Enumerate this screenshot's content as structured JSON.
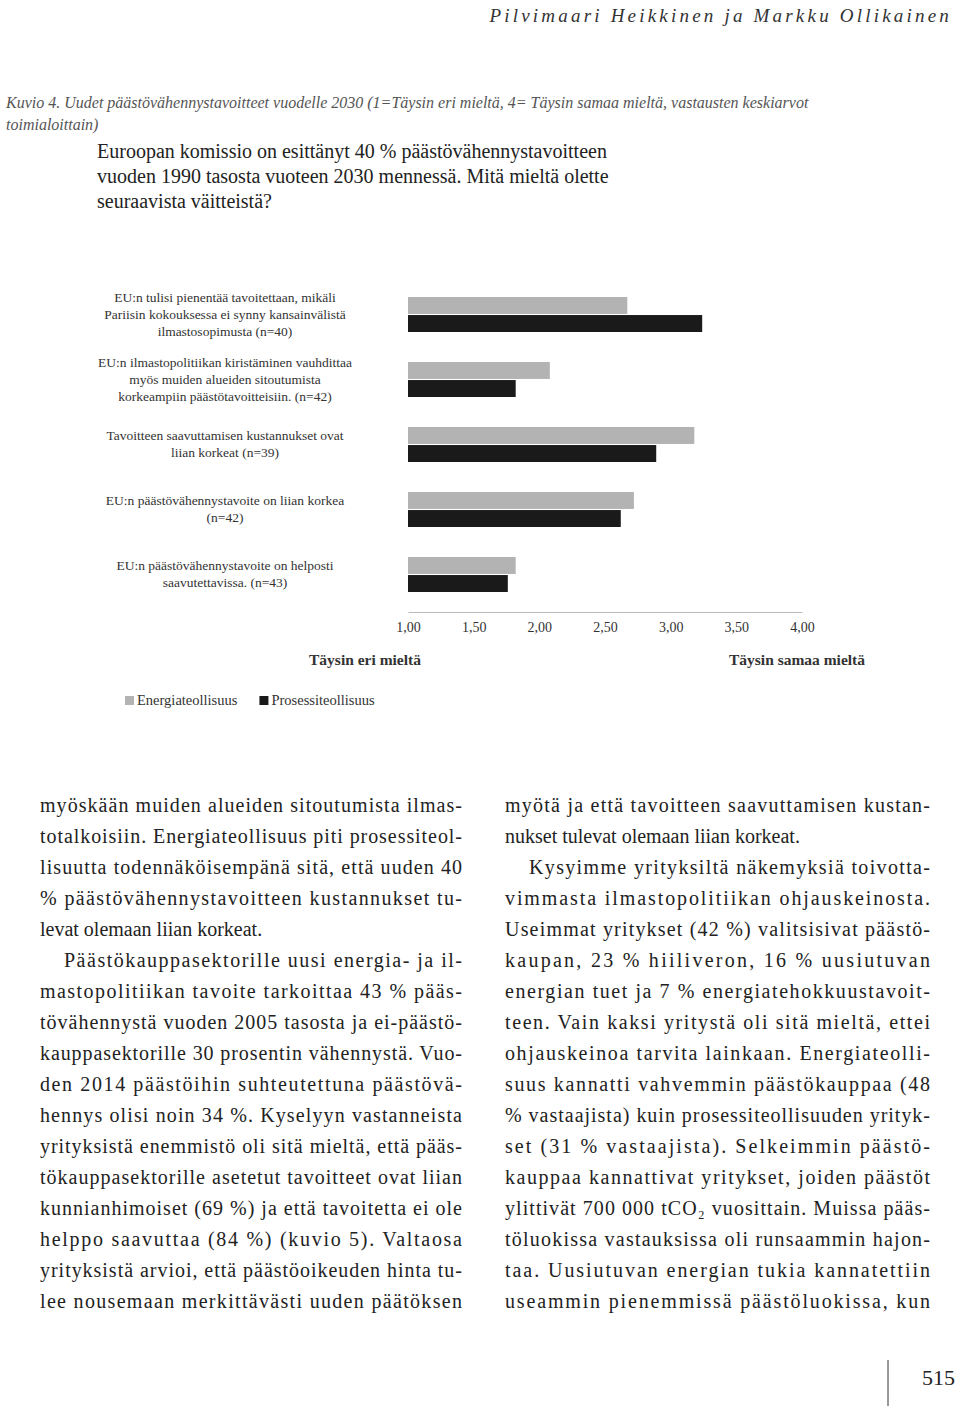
{
  "header": "Pilvimaari Heikkinen ja Markku Ollikainen",
  "caption": "Kuvio 4. Uudet päästövähennystavoitteet vuodelle 2030 (1=Täysin eri mieltä, 4= Täysin samaa mieltä, vastausten keskiarvot\ntoimialoittain)",
  "chart_data": {
    "type": "bar",
    "orientation": "horizontal",
    "title": "Euroopan komissio on esittänyt 40 % päästövähennystavoitteen\nvuoden 1990 tasosta vuoteen 2030 mennessä. Mitä mieltä olette\nseuraavista väitteistä?",
    "categories": [
      "EU:n tulisi pienentää tavoitettaan, mikäli\nPariisin kokouksessa ei synny kansainvälistä\nilmastosopimusta (n=40)",
      "EU:n ilmastopolitiikan kiristäminen vauhdittaa\nmyös muiden alueiden sitoutumista\nkorkeampiin päästötavoitteisiin. (n=42)",
      "Tavoitteen saavuttamisen kustannukset ovat\nliian korkeat (n=39)",
      "EU:n päästövähennystavoite on liian korkea\n(n=42)",
      "EU:n päästövähennystavoite on helposti\nsaavutettavissa. (n=43)"
    ],
    "series": [
      {
        "name": "Energiateollisuus",
        "color": "#b3b3b3",
        "values": [
          2.67,
          2.08,
          3.18,
          2.72,
          1.82
        ]
      },
      {
        "name": "Prosessiteollisuus",
        "color": "#1a1a1a",
        "values": [
          3.24,
          1.82,
          2.89,
          2.62,
          1.76
        ]
      }
    ],
    "xlim": [
      1,
      4
    ],
    "xticks": [
      {
        "value": 1,
        "label": "1,00"
      },
      {
        "value": 1.5,
        "label": "1,50"
      },
      {
        "value": 2,
        "label": "2,00"
      },
      {
        "value": 2.5,
        "label": "2,50"
      },
      {
        "value": 3,
        "label": "3,00"
      },
      {
        "value": 3.5,
        "label": "3,50"
      },
      {
        "value": 4,
        "label": "4,00"
      }
    ],
    "annotations": [
      "Täysin eri mieltä",
      "Täysin samaa mieltä"
    ],
    "grid": false,
    "legend": "bottom-left"
  },
  "body": {
    "columns": [
      [
        {
          "lines": [
            "myöskään muiden alueiden sitoutumista ilmas-",
            "totalkoisiin. Energiateollisuus piti prosessiteol-",
            "lisuutta todennäköisempänä sitä, että uuden 40",
            "% päästövähennystavoitteen kustannukset tu-",
            "levat olemaan liian korkeat."
          ]
        },
        {
          "lines": [
            "Päästökauppasektorille uusi energia- ja il-",
            "mastopolitiikan tavoite tarkoittaa 43 % pääs-",
            "tövähennystä vuoden 2005 tasosta ja ei-päästö-",
            "kauppasektorille 30 prosentin vähennystä. Vuo-",
            "den 2014 päästöihin suhteutettuna päästövä-",
            "hennys olisi noin 34 %. Kyselyyn vastanneista",
            "yrityksistä enemmistö oli sitä mieltä, että pääs-",
            "tökauppasektorille asetetut tavoitteet ovat liian",
            "kunnianhimoiset (69 %) ja että tavoitetta ei ole",
            "helppo saavuttaa (84 %) (kuvio 5). Valtaosa",
            "yrityksistä arvioi, että päästöoikeuden hinta tu-",
            "lee nousemaan merkittävästi uuden päätöksen"
          ]
        }
      ],
      [
        {
          "lines": [
            "myötä ja että tavoitteen saavuttamisen kustan-",
            "nukset tulevat olemaan liian korkeat."
          ]
        },
        {
          "lines": [
            "Kysyimme yrityksiltä näkemyksiä toivotta-",
            "vimmasta ilmastopolitiikan ohjauskeinosta.",
            "Useimmat yritykset (42 %) valitsisivat päästö-",
            "kaupan, 23 % hiiliveron, 16 % uusiutuvan",
            "energian tuet ja 7 % energiatehokkuustavoit-",
            "teen. Vain kaksi yritystä oli sitä mieltä, ettei",
            "ohjauskeinoa tarvita lainkaan. Energiateolli-",
            "suus kannatti vahvemmin päästökauppaa (48",
            "% vastaajista) kuin prosessiteollisuuden yrityk-",
            "set (31 % vastaajista). Selkeimmin päästö-",
            "kauppaa kannattivat yritykset, joiden päästöt",
            "ylittivät 700 000 tCO₂ vuosittain. Muissa pääs-",
            "töluokissa vastauksissa oli runsaammin hajon-",
            "taa. Uusiutuvan energian tukia kannatettiin",
            "useammin pienemmissä päästöluokissa, kun"
          ]
        }
      ]
    ]
  },
  "page_number": "515"
}
